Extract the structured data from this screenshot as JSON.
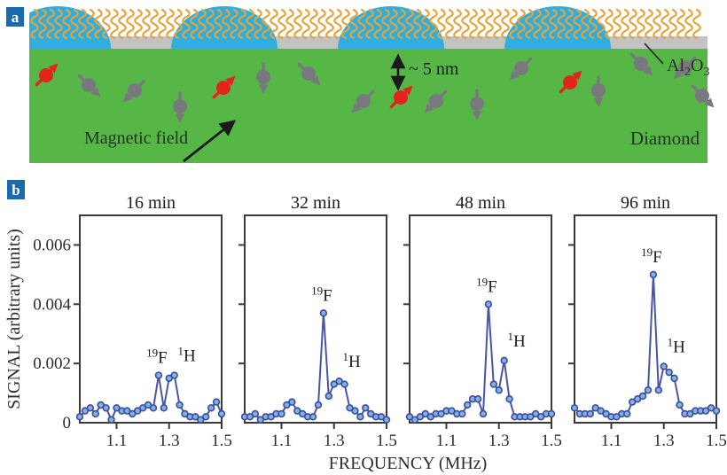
{
  "figure": {
    "panel_a": {
      "badge": "a",
      "magnetic_field_label": "Magnetic field",
      "depth_label": "~ 5 nm",
      "substrate_label": "Diamond",
      "coating_label_parts": [
        {
          "t": "Al",
          "sub": false
        },
        {
          "t": "2",
          "sub": true
        },
        {
          "t": "O",
          "sub": false
        },
        {
          "t": "3",
          "sub": true
        }
      ]
    },
    "panel_b": {
      "badge": "b"
    },
    "colors": {
      "badge_blue": "#1a6aad",
      "diamond_green": "#56b747",
      "droplet_blue": "#2fafdf",
      "oxide_gray": "#c3c3c3",
      "molecule_orange": "#e8a33c",
      "spin_gray": "#78787e",
      "spin_red": "#e2241d",
      "plot_line": "#4a55a8",
      "marker_fill": "#7fb2e0",
      "marker_stroke": "#3c4b9e",
      "axis_dark": "#3a3a3a",
      "text_dark": "#2d2d2d"
    }
  },
  "chart_data": {
    "type": "line",
    "xlabel": "FREQUENCY (MHz)",
    "ylabel": "SIGNAL (arbitrary units)",
    "xlim": [
      0.96,
      1.5
    ],
    "ylim": [
      0,
      0.007
    ],
    "xticks": [
      1.1,
      1.3,
      1.5
    ],
    "yticks": [
      0,
      0.002,
      0.004,
      0.006
    ],
    "ytick_labels": [
      "0",
      "0.002",
      "0.004",
      "0.006"
    ],
    "peak_labels": {
      "fluorine": {
        "sup": "19",
        "base": "F"
      },
      "hydrogen": {
        "sup": "1",
        "base": "H"
      }
    },
    "x": [
      0.96,
      0.98,
      1.0,
      1.02,
      1.04,
      1.06,
      1.08,
      1.1,
      1.12,
      1.14,
      1.16,
      1.18,
      1.2,
      1.22,
      1.24,
      1.26,
      1.28,
      1.3,
      1.32,
      1.34,
      1.36,
      1.38,
      1.4,
      1.42,
      1.44,
      1.46,
      1.48,
      1.5
    ],
    "subplots": [
      {
        "title": "16 min",
        "values": [
          0.0002,
          0.0004,
          0.0005,
          0.0003,
          0.0006,
          0.0005,
          0.0001,
          0.0005,
          0.0004,
          0.0004,
          0.0003,
          0.0004,
          0.0005,
          0.0006,
          0.0005,
          0.0016,
          0.0005,
          0.0015,
          0.0016,
          0.0006,
          0.0003,
          0.0002,
          0.0002,
          0.0001,
          0.0002,
          0.0005,
          0.0007,
          0.0003
        ],
        "f_peak_index": 15,
        "h_peak_index": 18
      },
      {
        "title": "32 min",
        "values": [
          0.0002,
          0.0002,
          0.0003,
          0.0001,
          0.0002,
          0.0002,
          0.0003,
          0.0003,
          0.0006,
          0.0007,
          0.0004,
          0.0003,
          0.0002,
          0.0002,
          0.0006,
          0.0037,
          0.0009,
          0.0013,
          0.0014,
          0.0013,
          0.0005,
          0.0004,
          0.0002,
          0.0005,
          0.0003,
          0.0002,
          0.0002,
          0.0001
        ],
        "f_peak_index": 15,
        "h_peak_index": 18
      },
      {
        "title": "48 min",
        "values": [
          0.0002,
          0.0001,
          0.0002,
          0.0003,
          0.0002,
          0.0003,
          0.0003,
          0.0004,
          0.0004,
          0.0003,
          0.0003,
          0.0006,
          0.0008,
          0.0008,
          0.0003,
          0.004,
          0.0013,
          0.0011,
          0.0021,
          0.0008,
          0.0002,
          0.0002,
          0.0002,
          0.0002,
          0.0003,
          0.0002,
          0.0003,
          0.0003
        ],
        "f_peak_index": 15,
        "h_peak_index": 18
      },
      {
        "title": "96 min",
        "values": [
          0.0005,
          0.0003,
          0.0003,
          0.0003,
          0.0005,
          0.0004,
          0.0003,
          0.0002,
          0.0002,
          0.0003,
          0.0003,
          0.0007,
          0.0008,
          0.0009,
          0.0011,
          0.005,
          0.0011,
          0.0019,
          0.0017,
          0.0015,
          0.0006,
          0.0003,
          0.0003,
          0.0004,
          0.0004,
          0.0004,
          0.0005,
          0.0004
        ],
        "f_peak_index": 15,
        "h_peak_index": 17
      }
    ]
  }
}
